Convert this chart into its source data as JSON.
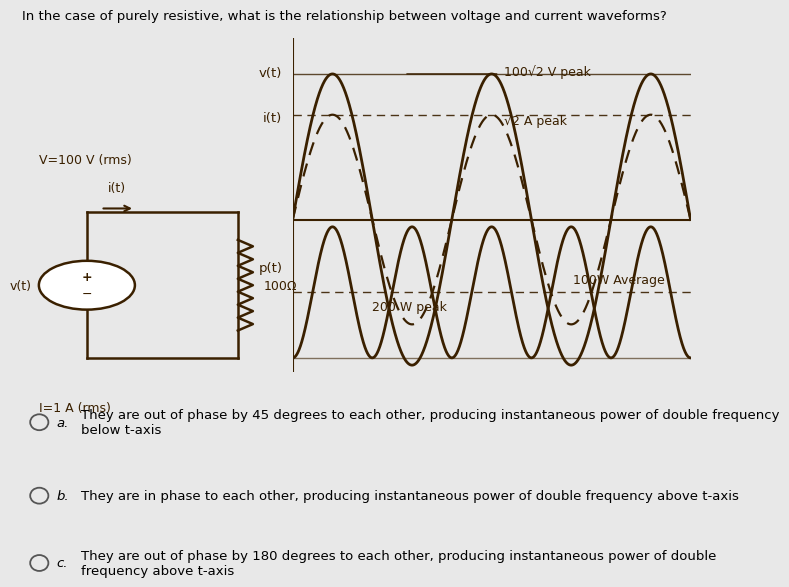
{
  "bg_color": "#e8e8e8",
  "panel_color": "#F0C040",
  "question": "In the case of purely resistive, what is the relationship between voltage and current waveforms?",
  "circuit": {
    "V_label": "V=100 V (rms)",
    "I_label": "I=1 A (rms)",
    "vt": "v(t)",
    "it": "i(t)",
    "R": "100Ω",
    "pt": "p(t)"
  },
  "annot": {
    "vt_ax": "v(t)",
    "it_ax": "i(t)",
    "v_peak": "100√2 V peak",
    "i_peak": "√2 A peak",
    "p_peak": "200 W peak",
    "p_avg": "100W Average"
  },
  "choices": [
    {
      "lbl": "a.",
      "txt": "They are out of phase by 45 degrees to each other, producing instantaneous power of double frequency\nbelow t-axis"
    },
    {
      "lbl": "b.",
      "txt": "They are in phase to each other, producing instantaneous power of double frequency above t-axis"
    },
    {
      "lbl": "c.",
      "txt": "They are out of phase by 180 degrees to each other, producing instantaneous power of double\nfrequency above t-axis"
    }
  ],
  "num_cycles": 2.5,
  "v_amp": 1.0,
  "i_amp": 0.72,
  "lw_v": 2.0,
  "lw_i": 1.6,
  "lw_p": 2.0,
  "line_color": "#3a2000"
}
